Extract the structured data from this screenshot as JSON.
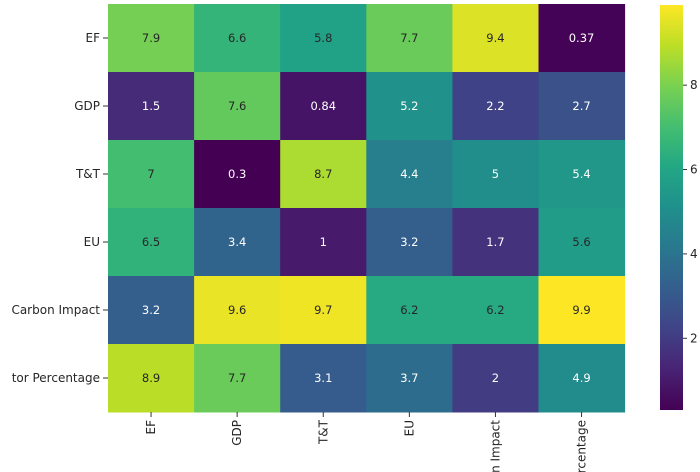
{
  "chart_data": {
    "type": "heatmap",
    "title": "",
    "xlabel": "",
    "ylabel": "",
    "row_labels": [
      "EF",
      "GDP",
      "T&T",
      "EU",
      "Carbon Impact",
      "tor Percentage"
    ],
    "col_labels": [
      "EF",
      "GDP",
      "T&T",
      "EU",
      "on Impact",
      "ercentage"
    ],
    "values": [
      [
        7.9,
        6.6,
        5.8,
        7.7,
        9.4,
        0.37
      ],
      [
        1.5,
        7.6,
        0.84,
        5.2,
        2.2,
        2.7
      ],
      [
        7,
        0.3,
        8.7,
        4.4,
        5,
        5.4
      ],
      [
        6.5,
        3.4,
        1,
        3.2,
        1.7,
        5.6
      ],
      [
        3.2,
        9.6,
        9.7,
        6.2,
        6.2,
        9.9
      ],
      [
        8.9,
        7.7,
        3.1,
        3.7,
        2,
        4.9
      ]
    ],
    "colormap": "viridis",
    "color_range": [
      0.3,
      9.9
    ],
    "colorbar_ticks": [
      2,
      4,
      6,
      8
    ],
    "colorbar_tick_labels": [
      "2",
      "4",
      "6",
      "8"
    ]
  }
}
